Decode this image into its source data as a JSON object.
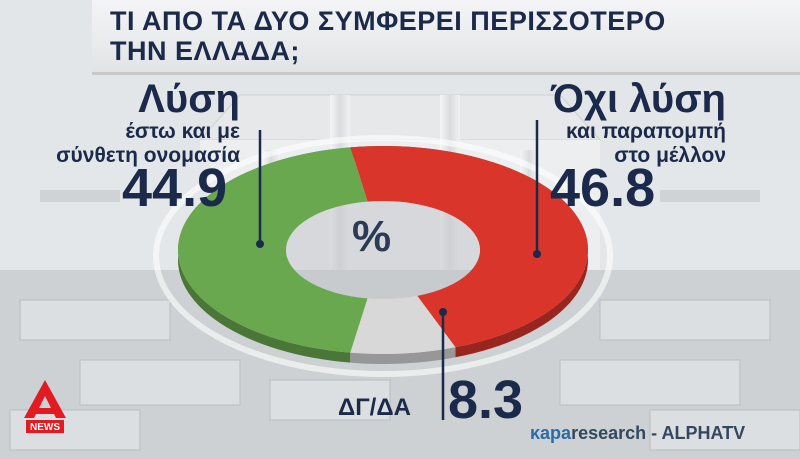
{
  "title": {
    "line1": "ΤΙ ΑΠΟ ΤΑ ΔΥΟ ΣΥΜΦΕΡΕΙ ΠΕΡΙΣΣΟΤΕΡΟ",
    "line2": "ΤΗΝ ΕΛΛΑΔΑ;"
  },
  "chart_data": {
    "type": "pie",
    "unit_label": "%",
    "slices": [
      {
        "label": "Λύση",
        "sublabel_1": "έστω και με",
        "sublabel_2": "σύνθετη ονομασία",
        "value": 44.9,
        "value_text": "44.9",
        "color": "#6aa84f"
      },
      {
        "label": "Όχι λύση",
        "sublabel_1": "και παραπομπή",
        "sublabel_2": "στο μέλλον",
        "value": 46.8,
        "value_text": "46.8",
        "color": "#d9352b"
      },
      {
        "label": "ΔΓ/ΔΑ",
        "value": 8.3,
        "value_text": "8.3",
        "color": "#d8d8d8"
      }
    ]
  },
  "source": {
    "brand": "κapa",
    "name": "research",
    "sep": " - ",
    "channel": "ALPHATV"
  },
  "logo": {
    "text": "NEWS",
    "color": "#e21b23"
  }
}
